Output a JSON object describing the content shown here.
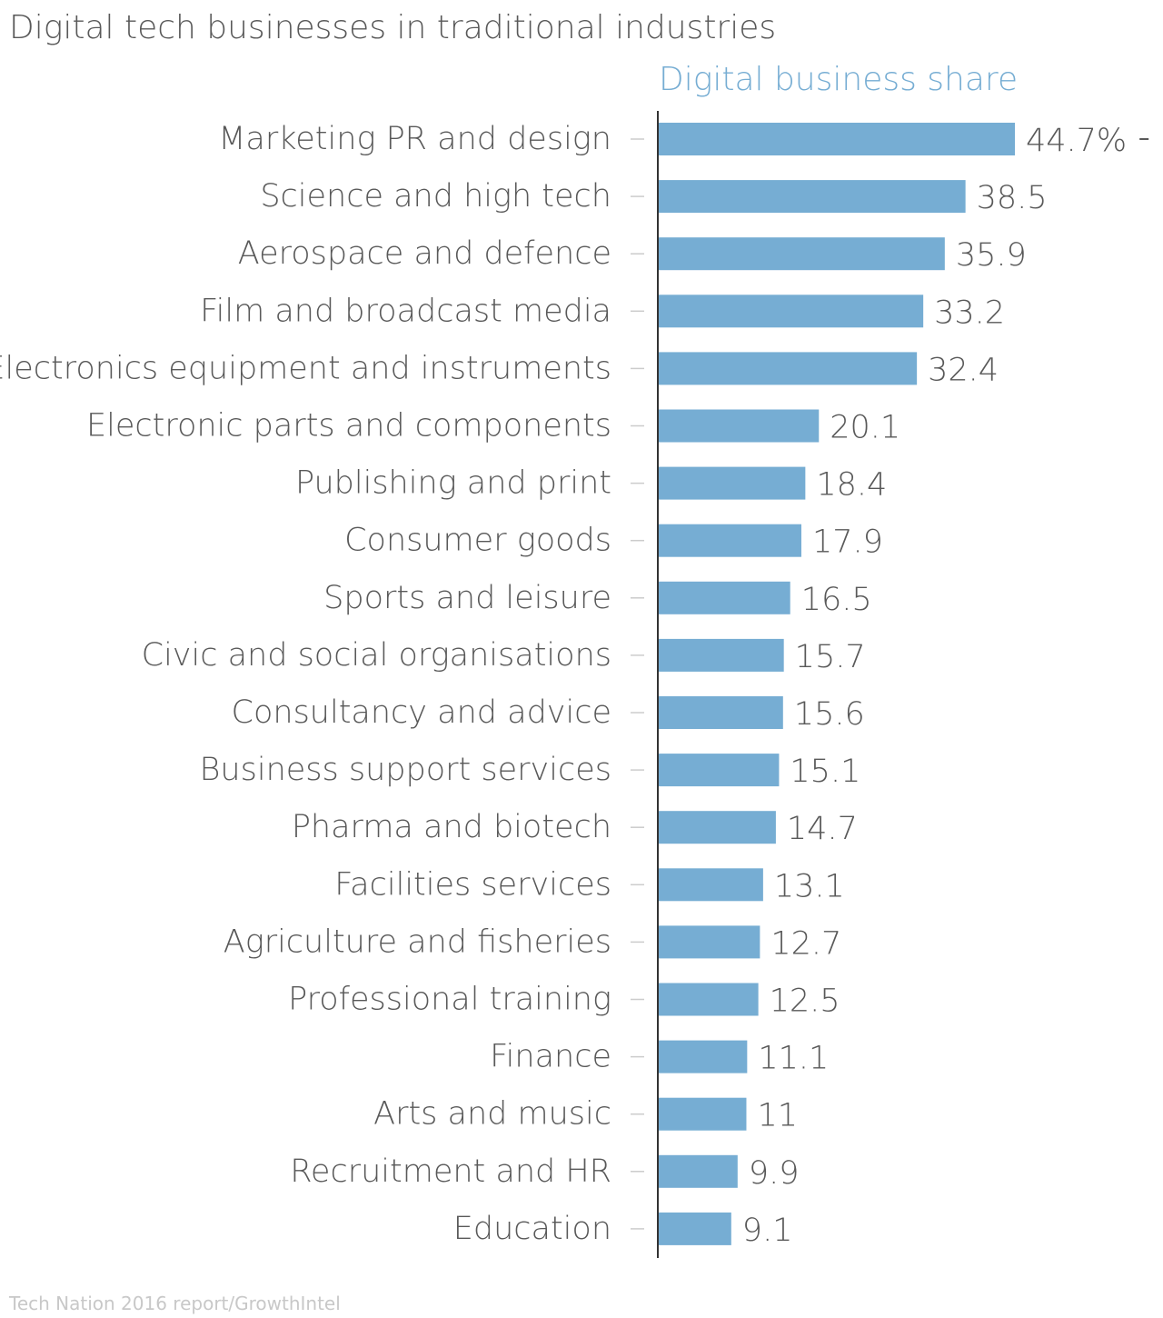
{
  "source": "Tech Nation 2016 report/GrowthIntel",
  "chart_data": {
    "type": "bar",
    "orientation": "horizontal",
    "title": "Digital tech businesses in traditional industries",
    "categories": [
      "Marketing PR and design",
      "Science and high tech",
      "Aerospace and defence",
      "Film and broadcast media",
      "Electronics equipment and instruments",
      "Electronic parts and components",
      "Publishing and print",
      "Consumer goods",
      "Sports and leisure",
      "Civic and social organisations",
      "Consultancy and advice",
      "Business support services",
      "Pharma and biotech",
      "Facilities services",
      "Agriculture and fisheries",
      "Professional training",
      "Finance",
      "Arts and music",
      "Recruitment and HR",
      "Education"
    ],
    "series": [
      {
        "name": "Digital business share",
        "values": [
          44.7,
          38.5,
          35.9,
          33.2,
          32.4,
          20.1,
          18.4,
          17.9,
          16.5,
          15.7,
          15.6,
          15.1,
          14.7,
          13.1,
          12.7,
          12.5,
          11.1,
          11,
          9.9,
          9.1
        ],
        "data_labels": [
          "44.7%",
          "38.5",
          "35.9",
          "33.2",
          "32.4",
          "20.1",
          "18.4",
          "17.9",
          "16.5",
          "15.7",
          "15.6",
          "15.1",
          "14.7",
          "13.1",
          "12.7",
          "12.5",
          "11.1",
          "11",
          "9.9",
          "9.1"
        ],
        "color": "#76add3"
      }
    ],
    "xlim": [
      0,
      44.7
    ],
    "grid": false,
    "legend": "top",
    "colors": {
      "title": "#595959",
      "label": "#595959",
      "axis": "#333333",
      "tick": "#cccccc",
      "source": "#c8c8c8"
    }
  }
}
